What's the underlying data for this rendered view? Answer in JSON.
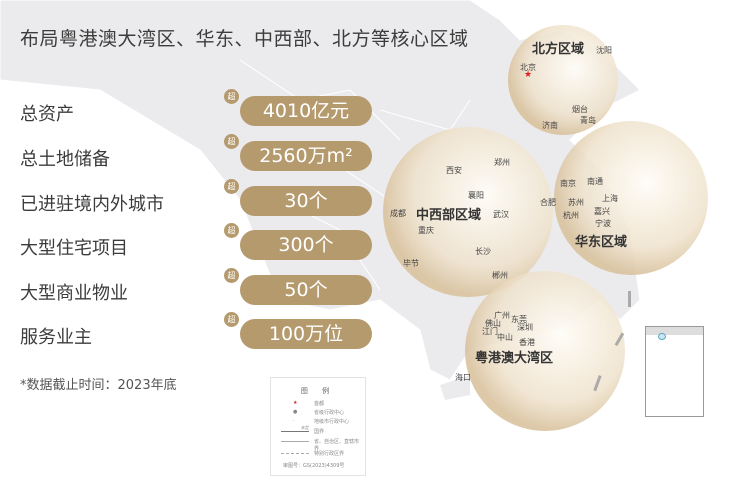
{
  "title": "布局粤港澳大湾区、华东、中西部、北方等核心区域",
  "stats": [
    {
      "label": "总资产",
      "badge": "超",
      "value": "4010亿元"
    },
    {
      "label": "总土地储备",
      "badge": "超",
      "value": "2560万m²"
    },
    {
      "label": "已进驻境内外城市",
      "badge": "超",
      "value": "30个"
    },
    {
      "label": "大型住宅项目",
      "badge": "超",
      "value": "300个"
    },
    {
      "label": "大型商业物业",
      "badge": "超",
      "value": "50个"
    },
    {
      "label": "服务业主",
      "badge": "超",
      "value": "100万位"
    }
  ],
  "note": "*数据截止时间：2023年底",
  "regions": {
    "north": {
      "name": "北方区域",
      "cities": [
        "沈阳",
        "北京",
        "烟台",
        "青岛",
        "济南"
      ]
    },
    "central_west": {
      "name": "中西部区域",
      "cities": [
        "西安",
        "郑州",
        "襄阳",
        "合肥",
        "成都",
        "武汉",
        "重庆",
        "长沙",
        "毕节",
        "郴州"
      ]
    },
    "east": {
      "name": "华东区域",
      "cities": [
        "南京",
        "南通",
        "苏州",
        "上海",
        "嘉兴",
        "杭州",
        "宁波"
      ]
    },
    "gba": {
      "name": "粤港澳大湾区",
      "cities": [
        "广州",
        "佛山",
        "东莞",
        "江门",
        "深圳",
        "中山",
        "香港",
        "海口"
      ]
    }
  },
  "legend": {
    "title": "图 例",
    "items": [
      "首都",
      "省级行政中心",
      "地级市行政中心",
      "国界",
      "省、自治区、直辖市界",
      "特别行政区界"
    ],
    "undefined_border": "未定",
    "approval_no": "审图号：GS(2023)4309号"
  },
  "colors": {
    "accent": "#b59a6e",
    "land": "#ebebed",
    "capital": "#e02020"
  }
}
